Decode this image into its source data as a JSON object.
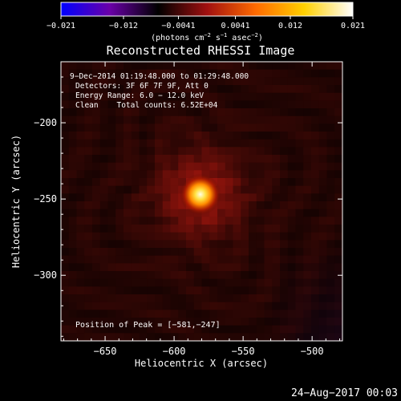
{
  "chart_data": {
    "type": "heatmap",
    "title": "Reconstructed RHESSI Image",
    "xlabel": "Heliocentric X (arcsec)",
    "ylabel": "Heliocentric Y (arcsec)",
    "xticks": [
      -650,
      -600,
      -550,
      -500
    ],
    "yticks": [
      -200,
      -250,
      -300
    ],
    "xtick_labels": [
      "−650",
      "−600",
      "−550",
      "−500"
    ],
    "ytick_labels": [
      "−200",
      "−250",
      "−300"
    ],
    "xlim": [
      -682,
      -478
    ],
    "ylim": [
      -343,
      -160
    ],
    "grid": false,
    "colorbar": {
      "ticks": [
        -0.021,
        -0.012,
        -0.0041,
        0.0041,
        0.012,
        0.021
      ],
      "tick_labels": [
        "−0.021",
        "−0.012",
        "−0.0041",
        "0.0041",
        "0.012",
        "0.021"
      ],
      "unit_prefix": "(photons cm",
      "unit_exp1": "−2",
      "unit_mid1": " s",
      "unit_exp2": "−1",
      "unit_mid2": " asec",
      "unit_exp3": "−2",
      "unit_suffix": ")",
      "range": [
        -0.021,
        0.021
      ],
      "colors": [
        "#0000ff",
        "#6a00a8",
        "#000000",
        "#a01010",
        "#ff6a00",
        "#ffd000",
        "#ffffff"
      ]
    },
    "annotations": [
      "9−Dec−2014 01:19:48.000 to 01:29:48.000",
      "Detectors: 3F 6F 7F 9F, Att 0",
      "Energy Range: 6.0 − 12.0 keV",
      "Clean    Total counts: 6.52E+04"
    ],
    "peak_label": "Position of Peak = [−581,−247]",
    "peak": {
      "x": -581,
      "y": -247,
      "value": 0.021
    },
    "background_level": 0.004
  },
  "footer_timestamp": "24−Aug−2017 00:03"
}
